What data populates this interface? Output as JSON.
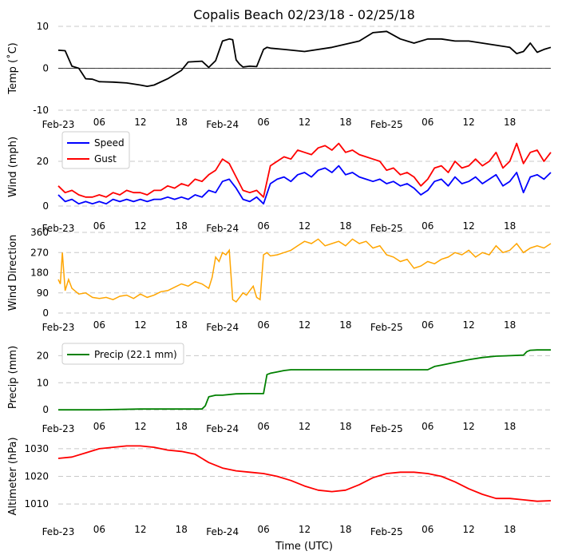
{
  "title": "Copalis Beach 02/23/18 - 02/25/18",
  "xlabel": "Time (UTC)",
  "x_ticks": [
    "Feb-23",
    "06",
    "12",
    "18",
    "Feb-24",
    "06",
    "12",
    "18",
    "Feb-25",
    "06",
    "12",
    "18"
  ],
  "x_range_hours": [
    0,
    72
  ],
  "colors": {
    "temp": "#000000",
    "speed": "#0000ff",
    "gust": "#ff0000",
    "dir": "#ffa500",
    "precip": "#008000",
    "alt": "#ff0000"
  },
  "chart_data": [
    {
      "type": "line",
      "name": "temp",
      "ylabel": "Temp (˚C)",
      "ylim": [
        -10,
        10
      ],
      "yticks": [
        "-10",
        "0",
        "10"
      ],
      "ytick_values": [
        -10,
        0,
        10
      ],
      "zero_line": true,
      "series": [
        {
          "name": "Temp",
          "color": "#000000",
          "x": [
            0,
            1,
            2,
            3,
            4,
            5,
            6,
            8,
            10,
            12,
            13,
            14,
            16,
            18,
            19,
            20,
            21,
            22,
            23,
            24,
            25,
            25.5,
            26,
            26.5,
            27,
            28,
            29,
            30,
            30.5,
            31,
            33,
            36,
            40,
            44,
            46,
            48,
            50,
            52,
            54,
            56,
            58,
            60,
            62,
            64,
            66,
            67,
            68,
            69,
            70,
            71,
            72
          ],
          "values": [
            4.3,
            4.2,
            0.5,
            0,
            -2.5,
            -2.6,
            -3.2,
            -3.3,
            -3.5,
            -4,
            -4.3,
            -4,
            -2.5,
            -0.5,
            1.5,
            1.6,
            1.7,
            0.2,
            1.8,
            6.5,
            7,
            6.8,
            2,
            1,
            0.3,
            0.5,
            0.4,
            4.5,
            5,
            4.8,
            4.5,
            4,
            5,
            6.5,
            8.5,
            8.8,
            7,
            6,
            7,
            7,
            6.5,
            6.5,
            6,
            5.5,
            5,
            3.5,
            4,
            6,
            3.8,
            4.5,
            5
          ]
        }
      ]
    },
    {
      "type": "line",
      "name": "wind",
      "ylabel": "Wind (mph)",
      "ylim": [
        0,
        35
      ],
      "yticks": [
        "0",
        "20"
      ],
      "ytick_values": [
        0,
        20
      ],
      "zero_line": false,
      "legend": [
        "Speed",
        "Gust"
      ],
      "series": [
        {
          "name": "Speed",
          "color": "#0000ff",
          "x": [
            0,
            1,
            2,
            3,
            4,
            5,
            6,
            7,
            8,
            9,
            10,
            11,
            12,
            13,
            14,
            15,
            16,
            17,
            18,
            19,
            20,
            21,
            22,
            23,
            24,
            25,
            26,
            27,
            28,
            29,
            30,
            31,
            32,
            33,
            34,
            35,
            36,
            37,
            38,
            39,
            40,
            41,
            42,
            43,
            44,
            45,
            46,
            47,
            48,
            49,
            50,
            51,
            52,
            53,
            54,
            55,
            56,
            57,
            58,
            59,
            60,
            61,
            62,
            63,
            64,
            65,
            66,
            67,
            68,
            69,
            70,
            71,
            72
          ],
          "values": [
            5,
            2,
            3,
            1,
            2,
            1,
            2,
            1,
            3,
            2,
            3,
            2,
            3,
            2,
            3,
            3,
            4,
            3,
            4,
            3,
            5,
            4,
            7,
            6,
            11,
            12,
            8,
            3,
            2,
            4,
            1,
            10,
            12,
            13,
            11,
            14,
            15,
            13,
            16,
            17,
            15,
            18,
            14,
            15,
            13,
            12,
            11,
            12,
            10,
            11,
            9,
            10,
            8,
            5,
            7,
            11,
            12,
            9,
            13,
            10,
            11,
            13,
            10,
            12,
            14,
            9,
            11,
            15,
            6,
            13,
            14,
            12,
            15
          ]
        },
        {
          "name": "Gust",
          "color": "#ff0000",
          "x": [
            0,
            1,
            2,
            3,
            4,
            5,
            6,
            7,
            8,
            9,
            10,
            11,
            12,
            13,
            14,
            15,
            16,
            17,
            18,
            19,
            20,
            21,
            22,
            23,
            24,
            25,
            26,
            27,
            28,
            29,
            30,
            31,
            32,
            33,
            34,
            35,
            36,
            37,
            38,
            39,
            40,
            41,
            42,
            43,
            44,
            45,
            46,
            47,
            48,
            49,
            50,
            51,
            52,
            53,
            54,
            55,
            56,
            57,
            58,
            59,
            60,
            61,
            62,
            63,
            64,
            65,
            66,
            67,
            68,
            69,
            70,
            71,
            72
          ],
          "values": [
            9,
            6,
            7,
            5,
            4,
            4,
            5,
            4,
            6,
            5,
            7,
            6,
            6,
            5,
            7,
            7,
            9,
            8,
            10,
            9,
            12,
            11,
            14,
            16,
            21,
            19,
            13,
            7,
            6,
            7,
            4,
            18,
            20,
            22,
            21,
            25,
            24,
            23,
            26,
            27,
            25,
            28,
            24,
            25,
            23,
            22,
            21,
            20,
            16,
            17,
            14,
            15,
            13,
            9,
            12,
            17,
            18,
            15,
            20,
            17,
            18,
            21,
            18,
            20,
            24,
            17,
            20,
            28,
            19,
            24,
            25,
            20,
            24
          ]
        }
      ]
    },
    {
      "type": "scatter",
      "name": "direction",
      "ylabel": "Wind Direction",
      "ylim": [
        0,
        360
      ],
      "yticks": [
        "0",
        "90",
        "180",
        "270",
        "360"
      ],
      "ytick_values": [
        0,
        90,
        180,
        270,
        360
      ],
      "zero_line": false,
      "series": [
        {
          "name": "Direction",
          "color": "#ffa500",
          "x": [
            0,
            0.3,
            0.6,
            1,
            1.5,
            2,
            3,
            4,
            5,
            6,
            7,
            8,
            9,
            10,
            11,
            12,
            13,
            14,
            15,
            16,
            17,
            18,
            19,
            20,
            21,
            22,
            22.5,
            23,
            23.5,
            24,
            24.5,
            25,
            25.5,
            26,
            26.5,
            27,
            27.5,
            28,
            28.5,
            29,
            29.5,
            30,
            30.5,
            31,
            32,
            33,
            34,
            35,
            36,
            37,
            38,
            39,
            40,
            41,
            42,
            43,
            44,
            45,
            46,
            47,
            48,
            49,
            50,
            51,
            52,
            53,
            54,
            55,
            56,
            57,
            58,
            59,
            60,
            61,
            62,
            63,
            64,
            65,
            66,
            67,
            68,
            69,
            70,
            71,
            72
          ],
          "values": [
            150,
            130,
            270,
            100,
            150,
            110,
            85,
            90,
            70,
            65,
            70,
            60,
            75,
            80,
            65,
            85,
            70,
            80,
            95,
            100,
            115,
            130,
            120,
            140,
            130,
            110,
            160,
            250,
            230,
            270,
            260,
            280,
            60,
            50,
            70,
            90,
            80,
            100,
            120,
            70,
            60,
            260,
            270,
            255,
            260,
            270,
            280,
            300,
            320,
            310,
            330,
            300,
            310,
            320,
            300,
            330,
            310,
            320,
            290,
            300,
            260,
            250,
            230,
            240,
            200,
            210,
            230,
            220,
            240,
            250,
            270,
            260,
            280,
            250,
            270,
            260,
            300,
            270,
            280,
            310,
            270,
            290,
            300,
            290,
            310
          ]
        }
      ]
    },
    {
      "type": "line",
      "name": "precip",
      "ylabel": "Precip (mm)",
      "ylim": [
        -2,
        26
      ],
      "yticks": [
        "0",
        "10",
        "20"
      ],
      "ytick_values": [
        0,
        10,
        20
      ],
      "zero_line": false,
      "legend": [
        "Precip (22.1 mm)"
      ],
      "series": [
        {
          "name": "Precip (22.1 mm)",
          "color": "#008000",
          "x": [
            0,
            6,
            12,
            21,
            21.5,
            22,
            23,
            24,
            26,
            28,
            30,
            30.5,
            31,
            32,
            33,
            34,
            36,
            40,
            44,
            46,
            48,
            50,
            52,
            54,
            55,
            56,
            57,
            58,
            60,
            62,
            64,
            66,
            68,
            68.5,
            69,
            70,
            72
          ],
          "values": [
            0,
            0,
            0.3,
            0.3,
            1.5,
            4.8,
            5.4,
            5.4,
            5.9,
            6,
            6,
            13,
            13.5,
            14,
            14.5,
            14.8,
            14.8,
            14.8,
            14.8,
            14.8,
            14.8,
            14.8,
            14.8,
            14.8,
            16,
            16.5,
            17,
            17.5,
            18.5,
            19.3,
            19.8,
            20,
            20.2,
            21.5,
            22,
            22.1,
            22.1
          ]
        }
      ]
    },
    {
      "type": "line",
      "name": "altimeter",
      "ylabel": "Altimeter (hPa)",
      "ylim": [
        1006,
        1034
      ],
      "yticks": [
        "1010",
        "1020",
        "1030"
      ],
      "ytick_values": [
        1010,
        1020,
        1030
      ],
      "zero_line": false,
      "series": [
        {
          "name": "Altimeter",
          "color": "#ff0000",
          "x": [
            0,
            2,
            4,
            6,
            8,
            10,
            12,
            14,
            16,
            18,
            20,
            22,
            24,
            26,
            28,
            30,
            32,
            34,
            36,
            38,
            40,
            42,
            44,
            46,
            48,
            50,
            52,
            54,
            56,
            58,
            60,
            62,
            64,
            66,
            68,
            70,
            72
          ],
          "values": [
            1026.5,
            1027,
            1028.5,
            1030,
            1030.5,
            1031,
            1031,
            1030.5,
            1029.5,
            1029,
            1028,
            1025,
            1023,
            1022,
            1021.5,
            1021,
            1020,
            1018.5,
            1016.5,
            1015,
            1014.5,
            1015,
            1017,
            1019.5,
            1021,
            1021.5,
            1021.5,
            1021,
            1020,
            1018,
            1015.5,
            1013.5,
            1012,
            1012,
            1011.5,
            1011,
            1011.2
          ]
        }
      ]
    }
  ]
}
